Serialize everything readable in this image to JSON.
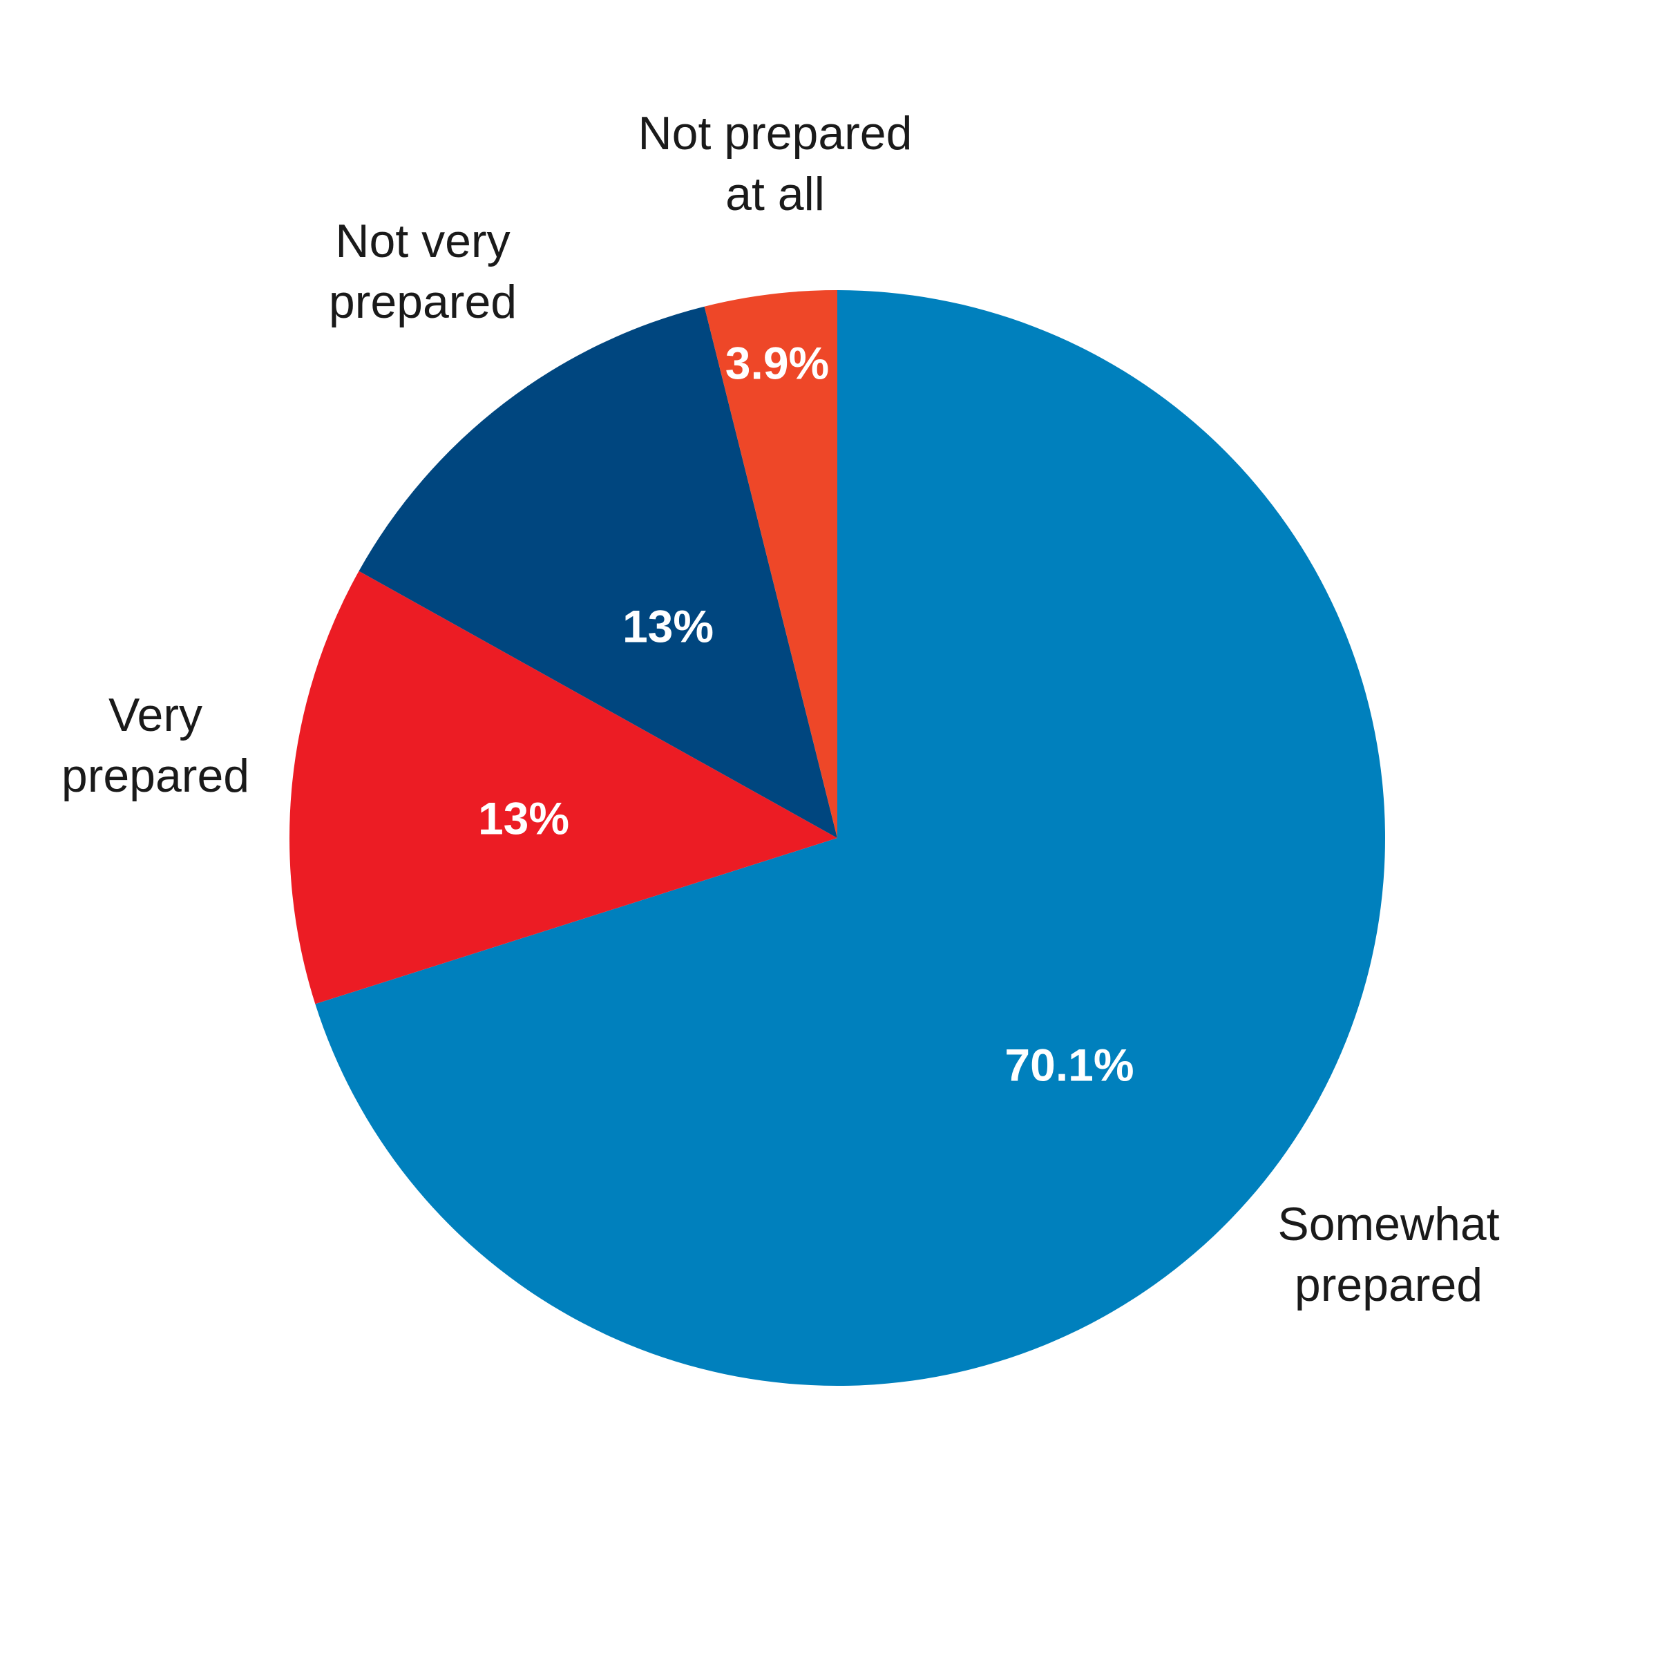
{
  "chart_data": {
    "type": "pie",
    "start": "12 o'clock",
    "direction": "clockwise",
    "slices": [
      {
        "label": "Somewhat prepared",
        "value": 70.1,
        "value_label": "70.1%",
        "color": "#0080BD"
      },
      {
        "label": "Very prepared",
        "value": 13,
        "value_label": "13%",
        "color": "#EC1C24"
      },
      {
        "label": "Not very prepared",
        "value": 13,
        "value_label": "13%",
        "color": "#00467F"
      },
      {
        "label": "Not prepared at all",
        "value": 3.9,
        "value_label": "3.9%",
        "color": "#EE4728"
      }
    ]
  }
}
